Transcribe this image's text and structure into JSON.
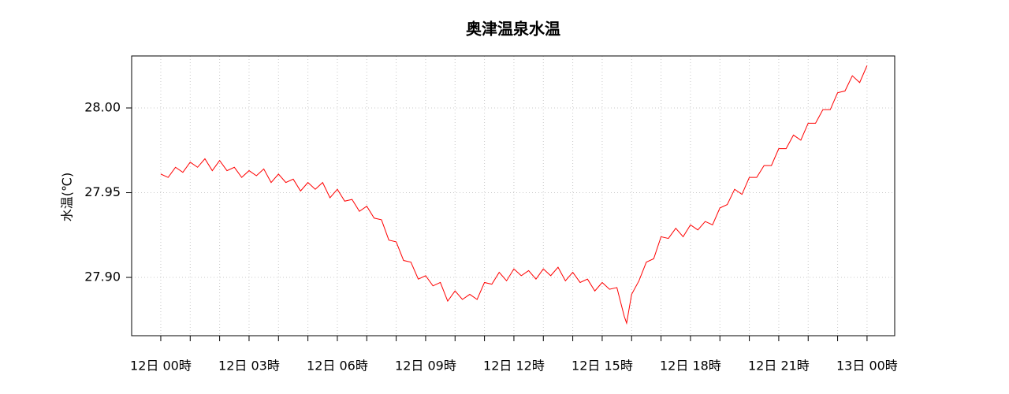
{
  "chart_data": {
    "type": "line",
    "title": "奥津温泉水温",
    "y_label": "水温(℃)",
    "x": [
      0,
      0.25,
      0.5,
      0.75,
      1,
      1.25,
      1.5,
      1.75,
      2,
      2.25,
      2.5,
      2.75,
      3,
      3.25,
      3.5,
      3.75,
      4,
      4.25,
      4.5,
      4.75,
      5,
      5.25,
      5.5,
      5.75,
      6,
      6.25,
      6.5,
      6.75,
      7,
      7.25,
      7.5,
      7.75,
      8,
      8.25,
      8.5,
      8.75,
      9,
      9.25,
      9.5,
      9.75,
      10,
      10.25,
      10.5,
      10.75,
      11,
      11.25,
      11.5,
      11.75,
      12,
      12.25,
      12.5,
      12.75,
      13,
      13.25,
      13.5,
      13.75,
      14,
      14.25,
      14.5,
      14.75,
      15,
      15.25,
      15.5,
      15.75,
      15.83,
      16,
      16.25,
      16.5,
      16.75,
      17,
      17.25,
      17.5,
      17.75,
      18,
      18.25,
      18.5,
      18.75,
      19,
      19.25,
      19.5,
      19.75,
      20,
      20.25,
      20.5,
      20.75,
      21,
      21.25,
      21.5,
      21.75,
      22,
      22.25,
      22.5,
      22.75,
      23,
      23.25,
      23.5,
      23.75,
      24
    ],
    "series": [
      {
        "name": "水温",
        "color": "#ff0000",
        "values": [
          27.961,
          27.959,
          27.965,
          27.962,
          27.968,
          27.965,
          27.97,
          27.963,
          27.969,
          27.963,
          27.965,
          27.959,
          27.963,
          27.96,
          27.964,
          27.956,
          27.961,
          27.956,
          27.958,
          27.951,
          27.956,
          27.952,
          27.956,
          27.947,
          27.952,
          27.945,
          27.946,
          27.939,
          27.942,
          27.935,
          27.934,
          27.922,
          27.921,
          27.91,
          27.909,
          27.899,
          27.901,
          27.895,
          27.897,
          27.886,
          27.892,
          27.887,
          27.89,
          27.887,
          27.897,
          27.896,
          27.903,
          27.898,
          27.905,
          27.901,
          27.904,
          27.899,
          27.905,
          27.901,
          27.906,
          27.898,
          27.903,
          27.897,
          27.899,
          27.892,
          27.897,
          27.893,
          27.894,
          27.877,
          27.873,
          27.89,
          27.898,
          27.909,
          27.911,
          27.924,
          27.923,
          27.929,
          27.924,
          27.931,
          27.928,
          27.933,
          27.931,
          27.941,
          27.943,
          27.952,
          27.949,
          27.959,
          27.959,
          27.966,
          27.966,
          27.976,
          27.976,
          27.984,
          27.981,
          27.991,
          27.991,
          27.999,
          27.999,
          28.009,
          28.01,
          28.019,
          28.015,
          28.025
        ]
      }
    ],
    "xlim": [
      -0.99,
      24.94
    ],
    "ylim": [
      27.8656,
      28.0307
    ],
    "xticks": [
      {
        "value": 0,
        "label": "12日 00時"
      },
      {
        "value": 3,
        "label": "12日 03時"
      },
      {
        "value": 6,
        "label": "12日 06時"
      },
      {
        "value": 9,
        "label": "12日 09時"
      },
      {
        "value": 12,
        "label": "12日 12時"
      },
      {
        "value": 15,
        "label": "12日 15時"
      },
      {
        "value": 18,
        "label": "12日 18時"
      },
      {
        "value": 21,
        "label": "12日 21時"
      },
      {
        "value": 24,
        "label": "13日 00時"
      }
    ],
    "xminorticks": [
      1,
      2,
      4,
      5,
      7,
      8,
      10,
      11,
      13,
      14,
      16,
      17,
      19,
      20,
      22,
      23
    ],
    "yticks": [
      {
        "value": 27.9,
        "label": "27.90"
      },
      {
        "value": 27.95,
        "label": "27.95"
      },
      {
        "value": 28.0,
        "label": "28.00"
      }
    ],
    "grid": true
  }
}
